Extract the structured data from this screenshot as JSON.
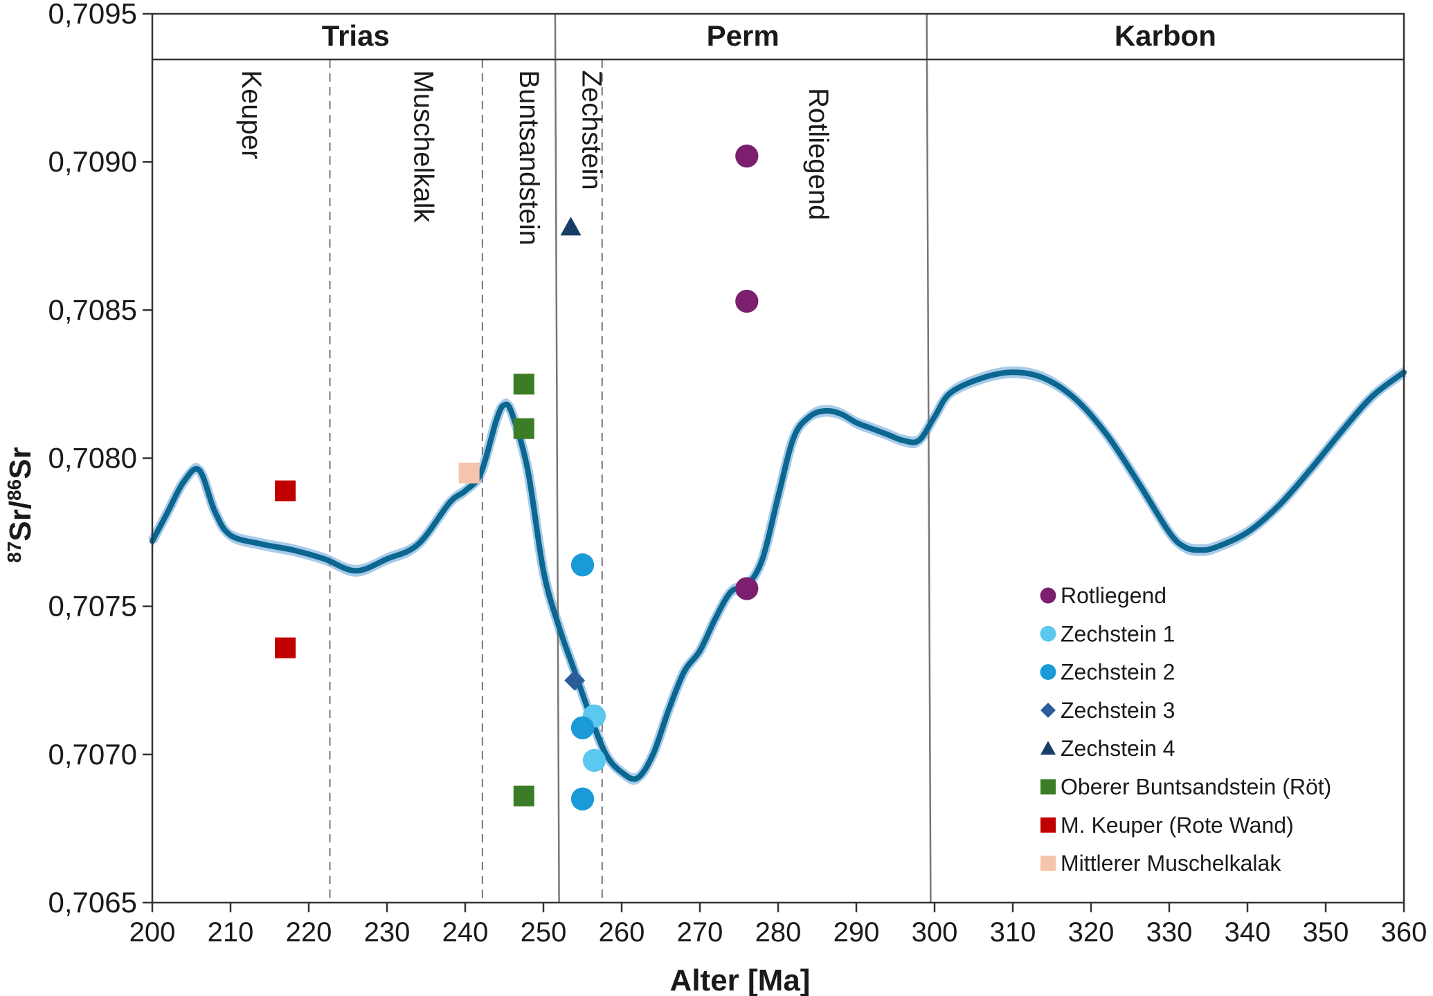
{
  "chart_data": {
    "type": "scatter",
    "xlabel": "Alter [Ma]",
    "ylabel_parts": {
      "sup1": "87",
      "base1": "Sr/",
      "sup2": "86",
      "base2": "Sr"
    },
    "xlim": [
      200,
      360
    ],
    "ylim": [
      0.7065,
      0.7095
    ],
    "x_ticks": [
      200,
      210,
      220,
      230,
      240,
      250,
      260,
      270,
      280,
      290,
      300,
      310,
      320,
      330,
      340,
      350,
      360
    ],
    "y_ticks": [
      0.7065,
      0.707,
      0.7075,
      0.708,
      0.7085,
      0.709,
      0.7095
    ],
    "y_tick_labels": [
      "0,7065",
      "0,7070",
      "0,7075",
      "0,7080",
      "0,7085",
      "0,7090",
      "0,7095"
    ],
    "periods": [
      {
        "name": "Trias",
        "from": 200,
        "to": 252
      },
      {
        "name": "Perm",
        "from": 252,
        "to": 299
      },
      {
        "name": "Karbon",
        "from": 299,
        "to": 360
      }
    ],
    "epochs": [
      {
        "name": "Keuper",
        "x": 211.5,
        "y": 0.70931
      },
      {
        "name": "Muschelkalk",
        "x": 233.5,
        "y": 0.70931
      },
      {
        "name": "Buntsandstein",
        "x": 247,
        "y": 0.70931
      },
      {
        "name": "Zechstein",
        "x": 255,
        "y": 0.70931
      },
      {
        "name": "Rotliegend",
        "x": 284,
        "y": 0.70925
      }
    ],
    "epoch_boundaries": [
      222.7,
      242.2,
      257.5
    ],
    "period_boundaries": [
      {
        "x_top": 251.5,
        "x_bottom": 252.0
      },
      {
        "x_top": 299.0,
        "x_bottom": 299.5
      }
    ],
    "curve": {
      "color": "#0b6690",
      "band_color": "#a8cbea",
      "x": [
        200,
        202,
        204,
        206,
        208,
        210,
        214,
        218,
        222,
        226,
        230,
        234,
        238,
        240,
        242,
        244,
        245,
        246,
        248,
        250,
        252,
        254,
        256,
        258,
        260,
        262,
        264,
        266,
        268,
        270,
        272,
        274,
        276,
        278,
        280,
        282,
        284,
        286,
        288,
        290,
        292,
        294,
        296,
        298,
        300,
        302,
        306,
        310,
        314,
        318,
        322,
        326,
        330,
        332,
        334,
        336,
        340,
        344,
        348,
        352,
        356,
        360
      ],
      "y": [
        0.70772,
        0.70782,
        0.70792,
        0.70796,
        0.70782,
        0.70774,
        0.70771,
        0.70769,
        0.70766,
        0.70762,
        0.70766,
        0.70771,
        0.70785,
        0.70789,
        0.70795,
        0.70813,
        0.70818,
        0.70815,
        0.70796,
        0.70762,
        0.70743,
        0.70728,
        0.70713,
        0.707,
        0.70694,
        0.70692,
        0.707,
        0.70715,
        0.70728,
        0.70735,
        0.70746,
        0.70755,
        0.70757,
        0.70766,
        0.70787,
        0.70807,
        0.70814,
        0.70816,
        0.70815,
        0.70812,
        0.7081,
        0.70808,
        0.70806,
        0.70806,
        0.70814,
        0.70822,
        0.70827,
        0.70829,
        0.70827,
        0.7082,
        0.70808,
        0.70792,
        0.70775,
        0.7077,
        0.70769,
        0.7077,
        0.70775,
        0.70784,
        0.70796,
        0.70809,
        0.70821,
        0.70829
      ]
    },
    "series": [
      {
        "name": "Rotliegend",
        "marker": "circle",
        "color": "#7b1f6e",
        "points": [
          [
            276,
            0.70902
          ],
          [
            276,
            0.70853
          ],
          [
            276,
            0.70756
          ]
        ]
      },
      {
        "name": "Zechstein 1",
        "marker": "circle",
        "color": "#5bc8ef",
        "points": [
          [
            256.5,
            0.70713
          ],
          [
            256.5,
            0.70698
          ]
        ]
      },
      {
        "name": "Zechstein 2",
        "marker": "circle",
        "color": "#1a9bd8",
        "points": [
          [
            255,
            0.70764
          ],
          [
            255,
            0.70709
          ],
          [
            255,
            0.70685
          ]
        ]
      },
      {
        "name": "Zechstein 3",
        "marker": "diamond",
        "color": "#2b5e99",
        "points": [
          [
            254,
            0.70725
          ]
        ]
      },
      {
        "name": "Zechstein 4",
        "marker": "triangle",
        "color": "#163e66",
        "points": [
          [
            253.5,
            0.70878
          ]
        ]
      },
      {
        "name": "Oberer Buntsandstein (Röt)",
        "marker": "square",
        "color": "#3b7d26",
        "points": [
          [
            247.5,
            0.70825
          ],
          [
            247.5,
            0.7081
          ],
          [
            247.5,
            0.70686
          ]
        ]
      },
      {
        "name": "M. Keuper (Rote Wand)",
        "marker": "square",
        "color": "#c00000",
        "points": [
          [
            217,
            0.70789
          ],
          [
            217,
            0.70736
          ]
        ]
      },
      {
        "name": "Mittlerer Muschelkalak",
        "marker": "square",
        "color": "#f5c4ac",
        "points": [
          [
            240.5,
            0.70795
          ]
        ]
      }
    ],
    "legend_position": "bottom-right"
  }
}
